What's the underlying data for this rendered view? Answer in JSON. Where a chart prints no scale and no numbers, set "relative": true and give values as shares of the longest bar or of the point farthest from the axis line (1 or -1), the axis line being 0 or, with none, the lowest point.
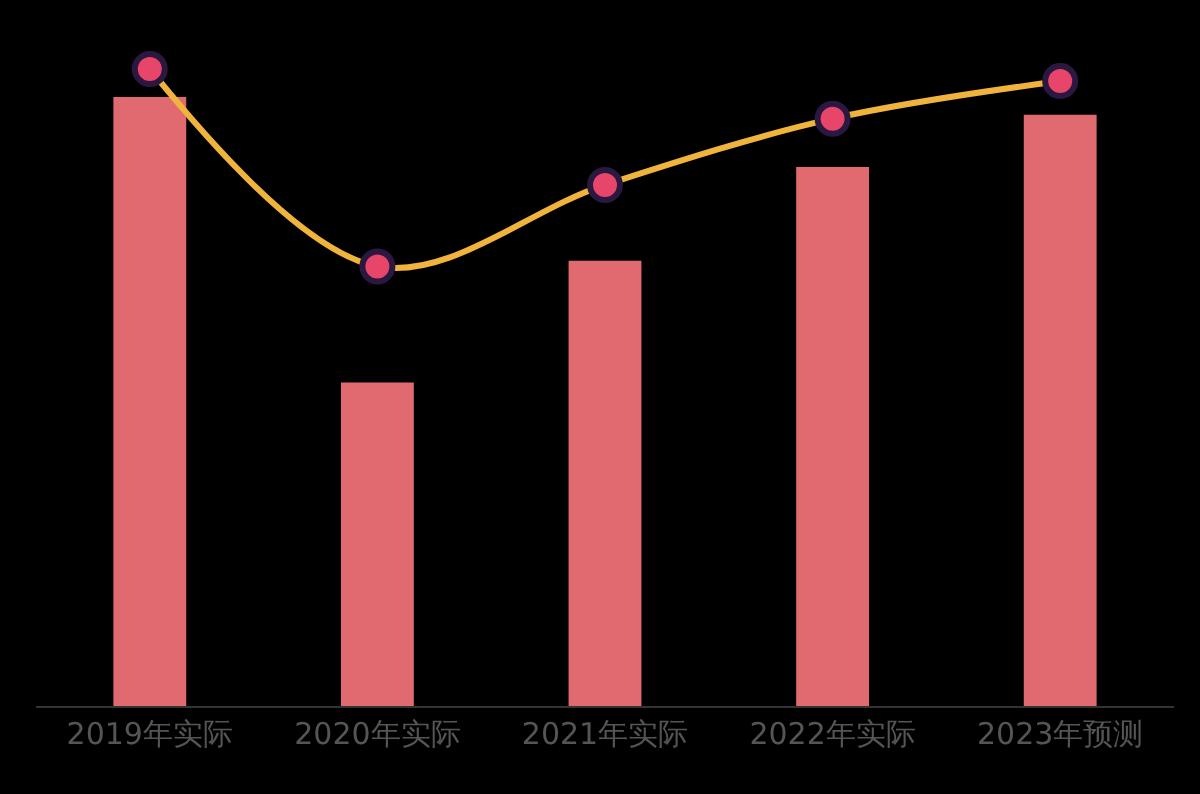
{
  "chart_data": {
    "type": "bar",
    "relative": true,
    "categories": [
      "2019年实际",
      "2020年实际",
      "2021年实际",
      "2022年实际",
      "2023年预测"
    ],
    "series": [
      {
        "color": "#e06a70",
        "values": [
          0.956,
          0.508,
          0.699,
          0.846,
          0.928
        ]
      },
      {
        "type": "line",
        "color": "#f0b43c",
        "values": [
          1,
          0.69,
          0.818,
          0.922,
          0.981
        ]
      }
    ],
    "marker": "circle",
    "grid": false,
    "legend": false
  }
}
